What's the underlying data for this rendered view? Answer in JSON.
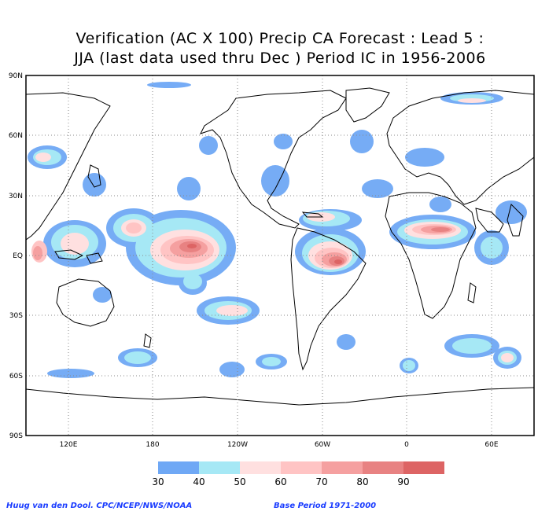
{
  "title": {
    "line1": "Verification (AC X 100) Precip CA Forecast : Lead 5 :",
    "line2": "JJA (last data used thru Dec ) Period IC in 1956-2006"
  },
  "map": {
    "projection": "equirectangular, centered 180",
    "lat_labels": [
      "90N",
      "60N",
      "30N",
      "EQ",
      "30S",
      "60S",
      "90S"
    ],
    "lon_labels": [
      "120E",
      "180",
      "120W",
      "60W",
      "0",
      "60E"
    ],
    "gridlines": "dotted",
    "land_outline_color": "#000000"
  },
  "legend": {
    "ticks": [
      "30",
      "40",
      "50",
      "60",
      "70",
      "80",
      "90"
    ],
    "colors": [
      "#6fa8f5",
      "#a6e8f5",
      "#ffe0e0",
      "#ffc4c4",
      "#f5a0a0",
      "#e88282",
      "#dd6464"
    ]
  },
  "footer": {
    "credit": "Huug van den Dool. CPC/NCEP/NWS/NOAA",
    "base_period": "Base Period 1971-2000"
  }
}
